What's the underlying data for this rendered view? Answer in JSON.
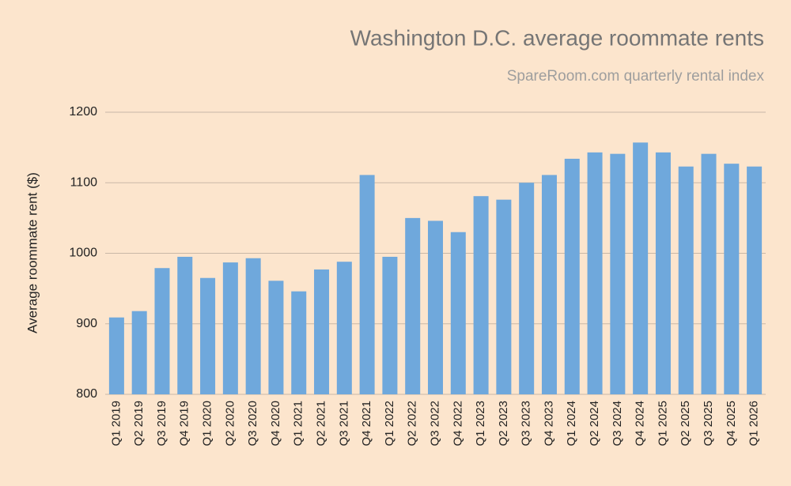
{
  "chart_data": {
    "type": "bar",
    "title": "Washington D.C. average roommate rents",
    "subtitle": "SpareRoom.com quarterly rental index",
    "y_label": "Average roommate rent ($)",
    "categories": [
      "Q1 2019",
      "Q2 2019",
      "Q3 2019",
      "Q4 2019",
      "Q1 2020",
      "Q2 2020",
      "Q3 2020",
      "Q4 2020",
      "Q1 2021",
      "Q2 2021",
      "Q3 2021",
      "Q4 2021",
      "Q1 2022",
      "Q2 2022",
      "Q3 2022",
      "Q4 2022",
      "Q1 2023",
      "Q2 2023",
      "Q3 2023",
      "Q4 2023",
      "Q1 2024",
      "Q2 2024",
      "Q3 2024",
      "Q4 2024",
      "Q1 2025",
      "Q2 2025",
      "Q3 2025",
      "Q4 2025",
      "Q1 2026"
    ],
    "values": [
      909,
      918,
      979,
      995,
      965,
      987,
      993,
      961,
      946,
      977,
      988,
      1111,
      995,
      1050,
      1046,
      1030,
      1081,
      1076,
      1100,
      1111,
      1134,
      1143,
      1141,
      1157,
      1143,
      1123,
      1141,
      1127,
      1123
    ],
    "color": "#6fa8dc",
    "ylim": [
      800,
      1200
    ],
    "yticks": [
      800,
      900,
      1000,
      1100,
      1200
    ],
    "grid": true
  }
}
